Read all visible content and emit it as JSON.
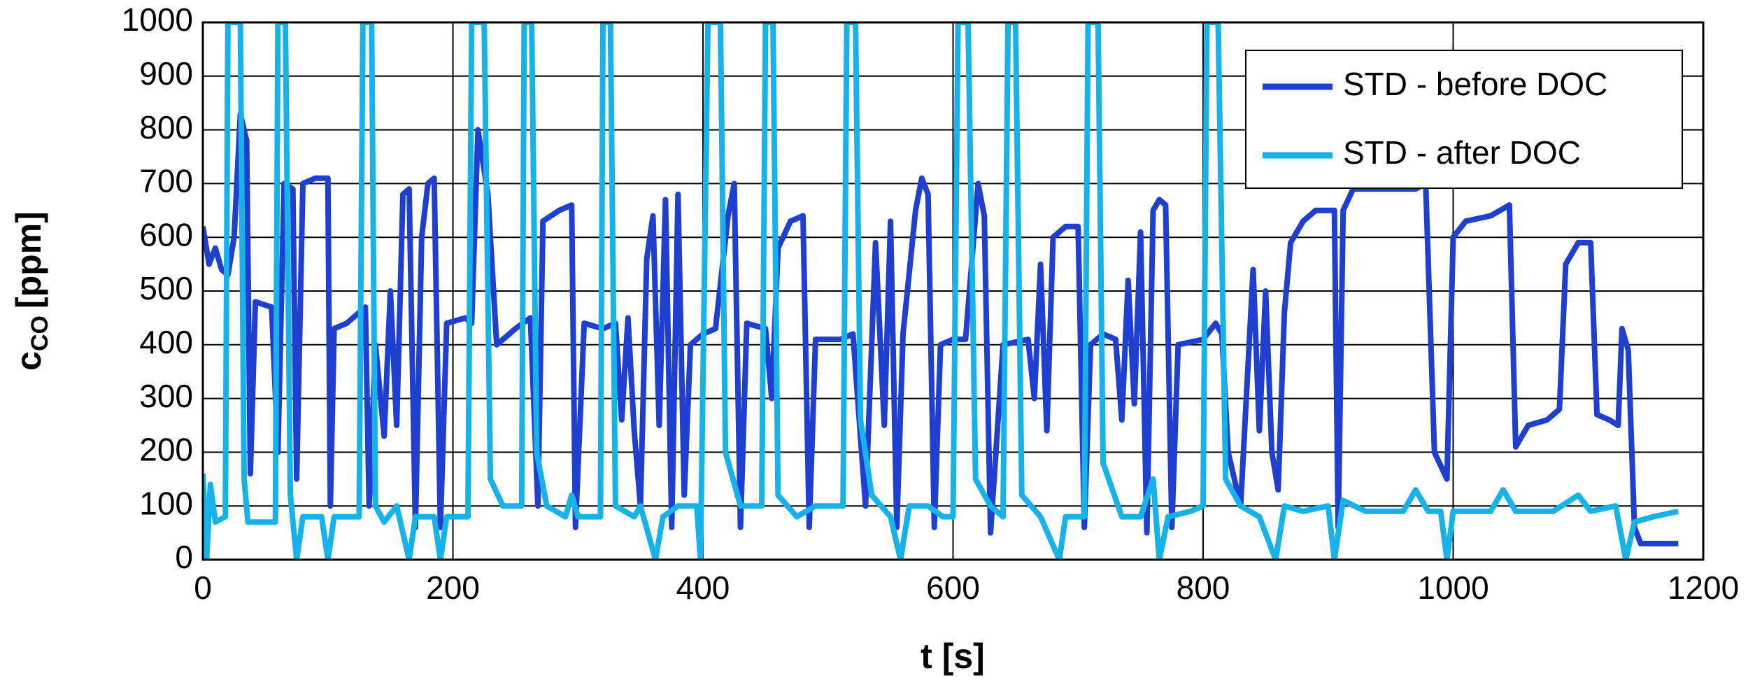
{
  "chart_data": {
    "type": "line",
    "x_label": "t [s]",
    "y_label": {
      "main": "c",
      "sub": "CO",
      "unit": "[ppm]"
    },
    "xlim": [
      0,
      1200
    ],
    "xticks": [
      0,
      200,
      400,
      600,
      800,
      1000,
      1200
    ],
    "ylim": [
      0,
      1000
    ],
    "yticks": [
      0,
      100,
      200,
      300,
      400,
      500,
      600,
      700,
      800,
      900,
      1000
    ],
    "grid": true,
    "legend": "upper right",
    "series": [
      {
        "name": "STD - before DOC",
        "color": "#1f3fd0",
        "x": [
          0,
          5,
          10,
          15,
          20,
          25,
          30,
          35,
          38,
          42,
          55,
          60,
          65,
          72,
          75,
          80,
          90,
          100,
          102,
          105,
          115,
          125,
          130,
          133,
          138,
          145,
          150,
          155,
          160,
          165,
          170,
          175,
          180,
          185,
          190,
          195,
          210,
          215,
          220,
          228,
          235,
          250,
          262,
          268,
          272,
          285,
          295,
          298,
          305,
          320,
          330,
          335,
          340,
          345,
          350,
          355,
          360,
          365,
          370,
          375,
          380,
          385,
          390,
          400,
          410,
          420,
          425,
          430,
          435,
          450,
          455,
          460,
          470,
          480,
          485,
          490,
          510,
          520,
          525,
          530,
          538,
          545,
          550,
          555,
          560,
          570,
          575,
          580,
          585,
          590,
          600,
          610,
          620,
          625,
          630,
          640,
          660,
          665,
          670,
          675,
          680,
          690,
          700,
          705,
          710,
          720,
          730,
          735,
          740,
          745,
          750,
          755,
          760,
          765,
          770,
          775,
          780,
          800,
          810,
          815,
          820,
          830,
          840,
          845,
          850,
          855,
          860,
          865,
          870,
          880,
          890,
          905,
          908,
          912,
          920,
          935,
          950,
          970,
          978,
          985,
          995,
          1000,
          1010,
          1030,
          1045,
          1050,
          1060,
          1075,
          1085,
          1090,
          1100,
          1110,
          1115,
          1125,
          1132,
          1135,
          1140,
          1145,
          1150,
          1180
        ],
        "values": [
          620,
          550,
          580,
          540,
          530,
          600,
          830,
          780,
          160,
          480,
          470,
          200,
          700,
          690,
          150,
          700,
          710,
          710,
          100,
          430,
          440,
          460,
          470,
          100,
          400,
          230,
          500,
          250,
          680,
          690,
          60,
          600,
          700,
          710,
          60,
          440,
          450,
          440,
          800,
          680,
          400,
          430,
          450,
          100,
          630,
          650,
          660,
          60,
          440,
          430,
          440,
          260,
          450,
          240,
          100,
          560,
          640,
          250,
          670,
          60,
          680,
          120,
          400,
          420,
          430,
          640,
          700,
          60,
          440,
          430,
          300,
          580,
          630,
          640,
          60,
          410,
          410,
          420,
          260,
          100,
          590,
          250,
          630,
          60,
          420,
          650,
          710,
          680,
          60,
          400,
          410,
          410,
          700,
          640,
          50,
          400,
          410,
          300,
          550,
          240,
          600,
          620,
          620,
          60,
          400,
          420,
          410,
          260,
          520,
          290,
          610,
          50,
          650,
          670,
          660,
          60,
          400,
          410,
          440,
          420,
          200,
          100,
          540,
          240,
          500,
          200,
          130,
          460,
          590,
          630,
          650,
          650,
          60,
          650,
          690,
          690,
          690,
          690,
          700,
          200,
          150,
          600,
          630,
          640,
          660,
          210,
          250,
          260,
          280,
          550,
          590,
          590,
          270,
          260,
          250,
          430,
          390,
          60,
          30,
          30
        ]
      },
      {
        "name": "STD - after DOC",
        "color": "#18b2ea",
        "x": [
          0,
          3,
          6,
          10,
          18,
          20,
          30,
          33,
          36,
          58,
          60,
          66,
          70,
          75,
          80,
          95,
          100,
          105,
          125,
          128,
          135,
          138,
          145,
          155,
          165,
          170,
          185,
          190,
          195,
          212,
          215,
          225,
          230,
          240,
          255,
          257,
          263,
          267,
          275,
          290,
          295,
          300,
          318,
          320,
          326,
          330,
          345,
          350,
          362,
          368,
          380,
          395,
          398,
          404,
          414,
          418,
          430,
          447,
          450,
          456,
          460,
          475,
          490,
          512,
          515,
          522,
          526,
          535,
          550,
          558,
          565,
          580,
          592,
          600,
          604,
          612,
          618,
          630,
          640,
          644,
          650,
          655,
          670,
          685,
          690,
          705,
          708,
          716,
          720,
          735,
          750,
          760,
          765,
          772,
          790,
          800,
          803,
          812,
          818,
          830,
          845,
          858,
          865,
          880,
          900,
          905,
          912,
          930,
          960,
          970,
          980,
          990,
          995,
          1000,
          1030,
          1040,
          1050,
          1080,
          1100,
          1110,
          1130,
          1138,
          1145,
          1160,
          1180
        ],
        "values": [
          160,
          0,
          140,
          70,
          80,
          1000,
          1000,
          150,
          70,
          70,
          1000,
          1000,
          120,
          0,
          80,
          80,
          0,
          80,
          80,
          1000,
          1000,
          100,
          70,
          100,
          0,
          80,
          80,
          0,
          80,
          80,
          1000,
          1000,
          150,
          100,
          100,
          1000,
          1000,
          200,
          100,
          80,
          120,
          80,
          80,
          1000,
          1000,
          100,
          80,
          100,
          0,
          80,
          100,
          100,
          0,
          1000,
          1000,
          200,
          100,
          100,
          1000,
          1000,
          120,
          80,
          100,
          100,
          1000,
          1000,
          260,
          120,
          80,
          0,
          100,
          100,
          80,
          80,
          1000,
          1000,
          150,
          100,
          80,
          1000,
          1000,
          120,
          80,
          0,
          80,
          80,
          1000,
          1000,
          180,
          80,
          80,
          150,
          0,
          80,
          90,
          100,
          1000,
          1000,
          150,
          100,
          80,
          0,
          100,
          90,
          100,
          0,
          110,
          90,
          90,
          130,
          90,
          90,
          0,
          90,
          90,
          130,
          90,
          90,
          120,
          90,
          100,
          0,
          70,
          80,
          90
        ]
      }
    ]
  }
}
